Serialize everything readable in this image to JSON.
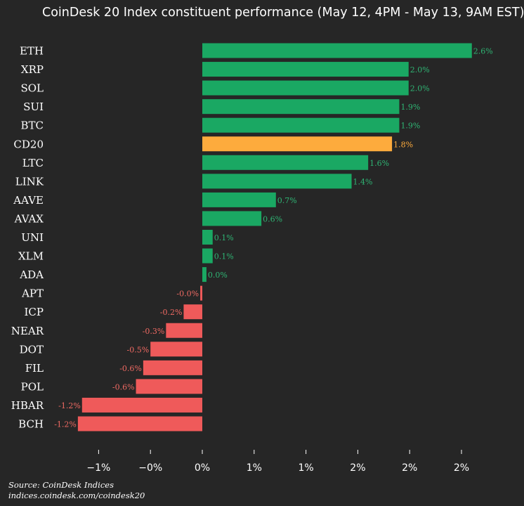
{
  "title": "CoinDesk 20 Index constituent performance (May 12, 4PM - May 13, 9AM EST)",
  "source_line1": "Source: CoinDesk Indices",
  "source_line2": "indices.coindesk.com/coindesk20",
  "colors": {
    "background": "#262626",
    "positive": "#1aa863",
    "negative": "#ef5a5a",
    "index": "#fdab3d",
    "positive_label": "#2fb574",
    "negative_label": "#f06a63",
    "index_label": "#fdab3d"
  },
  "chart_data": {
    "type": "bar",
    "orientation": "horizontal",
    "title": "CoinDesk 20 Index constituent performance (May 12, 4PM - May 13, 9AM EST)",
    "categories": [
      "ETH",
      "XRP",
      "SOL",
      "SUI",
      "BTC",
      "CD20",
      "LTC",
      "LINK",
      "AAVE",
      "AVAX",
      "UNI",
      "XLM",
      "ADA",
      "APT",
      "ICP",
      "NEAR",
      "DOT",
      "FIL",
      "POL",
      "HBAR",
      "BCH"
    ],
    "values": [
      2.6,
      1.99,
      1.99,
      1.9,
      1.9,
      1.83,
      1.6,
      1.44,
      0.71,
      0.57,
      0.1,
      0.1,
      0.04,
      -0.02,
      -0.18,
      -0.35,
      -0.5,
      -0.57,
      -0.64,
      -1.16,
      -1.2
    ],
    "value_labels": [
      "2.6%",
      "2.0%",
      "2.0%",
      "1.9%",
      "1.9%",
      "1.8%",
      "1.6%",
      "1.4%",
      "0.7%",
      "0.6%",
      "0.1%",
      "0.1%",
      "0.0%",
      "-0.0%",
      "-0.2%",
      "-0.3%",
      "-0.5%",
      "-0.6%",
      "-0.6%",
      "-1.2%",
      "-1.2%"
    ],
    "highlight": "CD20",
    "x_ticks": [
      -1,
      -0.5,
      0,
      0.5,
      1,
      1.5,
      2,
      2.5
    ],
    "x_tick_labels": [
      "−1%",
      "−0%",
      "0%",
      "1%",
      "1%",
      "2%",
      "2%",
      "2%"
    ],
    "xlim": [
      -1.35,
      2.65
    ],
    "grid": false,
    "legend": "none"
  }
}
